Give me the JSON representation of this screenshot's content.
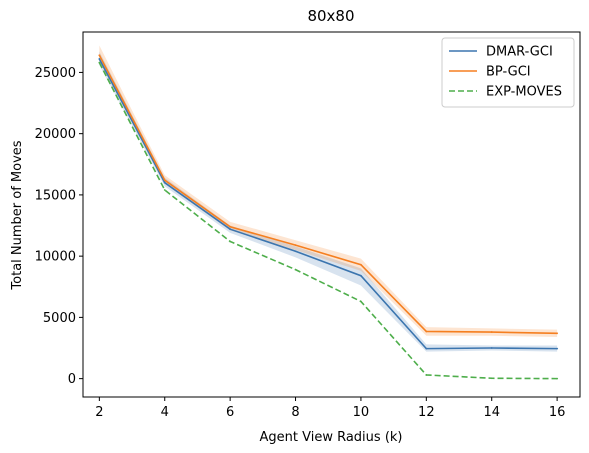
{
  "chart_data": {
    "type": "line",
    "title": "80x80",
    "xlabel": "Agent View Radius (k)",
    "ylabel": "Total Number of Moves",
    "x": [
      2,
      4,
      6,
      8,
      10,
      12,
      14,
      16
    ],
    "xlim": [
      1.5,
      16.7
    ],
    "ylim": [
      -1500,
      28300
    ],
    "xticks": [
      "2",
      "4",
      "6",
      "8",
      "10",
      "12",
      "14",
      "16"
    ],
    "yticks": [
      "0",
      "5000",
      "10000",
      "15000",
      "20000",
      "25000"
    ],
    "grid": false,
    "legend_position": "top-right",
    "series": [
      {
        "name": "DMAR-GCI",
        "color": "#3b75af",
        "style": "solid",
        "values": [
          26100,
          16000,
          12200,
          10400,
          8400,
          2450,
          2500,
          2450
        ],
        "band_lower": [
          25600,
          15700,
          11900,
          9900,
          7600,
          2200,
          2300,
          2200
        ],
        "band_upper": [
          26700,
          16400,
          12500,
          10800,
          9000,
          2800,
          2700,
          2700
        ]
      },
      {
        "name": "BP-GCI",
        "color": "#f57f20",
        "style": "solid",
        "values": [
          26400,
          16200,
          12400,
          10900,
          9300,
          3850,
          3800,
          3700
        ],
        "band_lower": [
          25900,
          15900,
          12100,
          10500,
          8800,
          3500,
          3500,
          3400
        ],
        "band_upper": [
          27200,
          16600,
          12800,
          11300,
          9800,
          4200,
          4100,
          4000
        ]
      },
      {
        "name": "EXP-MOVES",
        "color": "#4eae4b",
        "style": "dashed",
        "values": [
          25800,
          15400,
          11200,
          8900,
          6300,
          300,
          30,
          0
        ]
      }
    ]
  }
}
